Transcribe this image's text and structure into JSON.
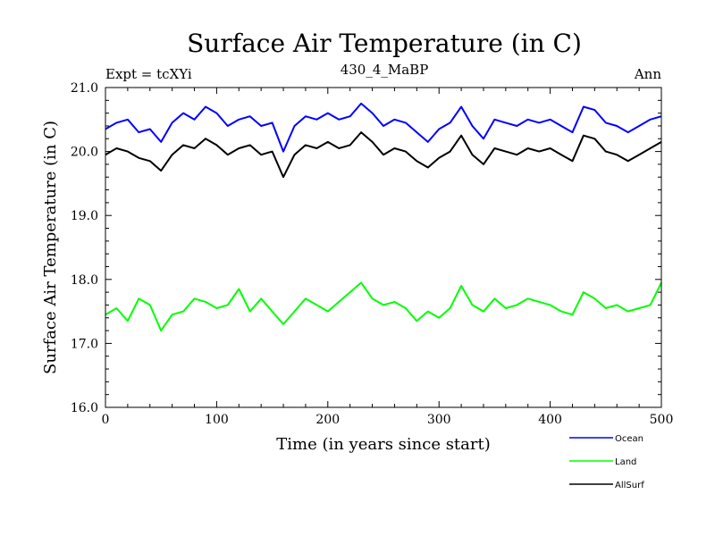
{
  "chart_data": {
    "type": "line",
    "title": "Surface Air Temperature (in C)",
    "header_left": "Expt = tcXYi",
    "header_center": "430_4_MaBP",
    "header_right": "Ann",
    "xlabel": "Time (in years since start)",
    "ylabel": "Surface Air Temperature (in C)",
    "xlim": [
      0,
      500
    ],
    "ylim": [
      16.0,
      21.0
    ],
    "xticks": [
      "0",
      "100",
      "200",
      "300",
      "400",
      "500"
    ],
    "yticks": [
      "16.0",
      "17.0",
      "18.0",
      "19.0",
      "20.0",
      "21.0"
    ],
    "grid": false,
    "legend_position": "bottom-right, outside plot",
    "x": [
      0,
      10,
      20,
      30,
      40,
      50,
      60,
      70,
      80,
      90,
      100,
      110,
      120,
      130,
      140,
      150,
      160,
      170,
      180,
      190,
      200,
      210,
      220,
      230,
      240,
      250,
      260,
      270,
      280,
      290,
      300,
      310,
      320,
      330,
      340,
      350,
      360,
      370,
      380,
      390,
      400,
      410,
      420,
      430,
      440,
      450,
      460,
      470,
      480,
      490,
      500
    ],
    "series": [
      {
        "name": "Ocean",
        "color": "#0000ff",
        "values": [
          20.35,
          20.45,
          20.5,
          20.3,
          20.35,
          20.15,
          20.45,
          20.6,
          20.5,
          20.7,
          20.6,
          20.4,
          20.5,
          20.55,
          20.4,
          20.45,
          20.0,
          20.4,
          20.55,
          20.5,
          20.6,
          20.5,
          20.55,
          20.75,
          20.6,
          20.4,
          20.5,
          20.45,
          20.3,
          20.15,
          20.35,
          20.45,
          20.7,
          20.4,
          20.2,
          20.5,
          20.45,
          20.4,
          20.5,
          20.45,
          20.5,
          20.4,
          20.3,
          20.7,
          20.65,
          20.45,
          20.4,
          20.3,
          20.4,
          20.5,
          20.55
        ]
      },
      {
        "name": "Land",
        "color": "#00ff00",
        "values": [
          17.45,
          17.55,
          17.35,
          17.7,
          17.6,
          17.2,
          17.45,
          17.5,
          17.7,
          17.65,
          17.55,
          17.6,
          17.85,
          17.5,
          17.7,
          17.5,
          17.3,
          17.5,
          17.7,
          17.6,
          17.5,
          17.65,
          17.8,
          17.95,
          17.7,
          17.6,
          17.65,
          17.55,
          17.35,
          17.5,
          17.4,
          17.55,
          17.9,
          17.6,
          17.5,
          17.7,
          17.55,
          17.6,
          17.7,
          17.65,
          17.6,
          17.5,
          17.45,
          17.8,
          17.7,
          17.55,
          17.6,
          17.5,
          17.55,
          17.6,
          17.95
        ]
      },
      {
        "name": "AllSurf",
        "color": "#000000",
        "values": [
          19.95,
          20.05,
          20.0,
          19.9,
          19.85,
          19.7,
          19.95,
          20.1,
          20.05,
          20.2,
          20.1,
          19.95,
          20.05,
          20.1,
          19.95,
          20.0,
          19.6,
          19.95,
          20.1,
          20.05,
          20.15,
          20.05,
          20.1,
          20.3,
          20.15,
          19.95,
          20.05,
          20.0,
          19.85,
          19.75,
          19.9,
          20.0,
          20.25,
          19.95,
          19.8,
          20.05,
          20.0,
          19.95,
          20.05,
          20.0,
          20.05,
          19.95,
          19.85,
          20.25,
          20.2,
          20.0,
          19.95,
          19.85,
          19.95,
          20.05,
          20.15
        ]
      }
    ]
  }
}
